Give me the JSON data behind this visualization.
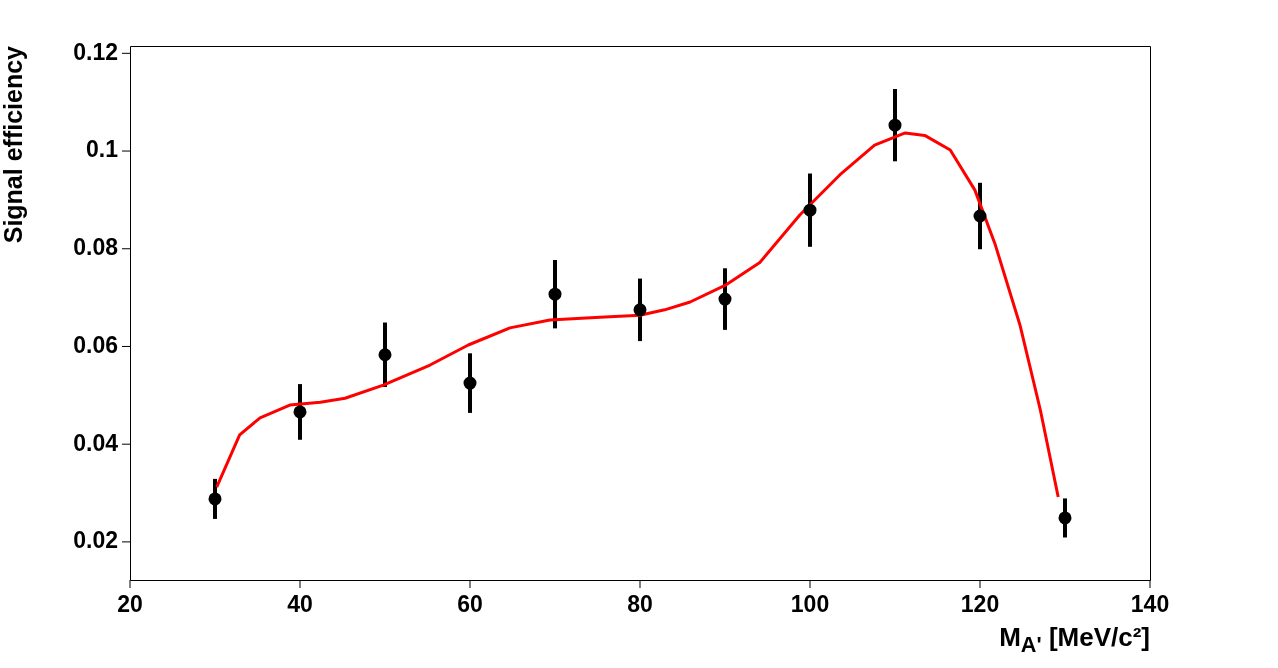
{
  "chart_data": {
    "type": "scatter",
    "ylabel": "Signal efficiency",
    "xlabel": "M$_{A'}$ [MeV/c²]",
    "xlim": [
      20,
      140
    ],
    "xticks": [
      20,
      40,
      60,
      80,
      100,
      120,
      140
    ],
    "ylim": [
      0.0122,
      0.1215
    ],
    "yticks": [
      0.02,
      0.04,
      0.06,
      0.08,
      0.1,
      0.12
    ],
    "marker": "circle",
    "series": [
      {
        "color": "#000000",
        "x": [
          30,
          40,
          50,
          60,
          70,
          80,
          90,
          100,
          110,
          120,
          130
        ],
        "values": [
          0.0288,
          0.0466,
          0.0583,
          0.0525,
          0.0707,
          0.0675,
          0.0697,
          0.0879,
          0.1053,
          0.0867,
          0.0249
        ],
        "errors": [
          0.0041,
          0.0057,
          0.0066,
          0.0061,
          0.007,
          0.0064,
          0.0063,
          0.0075,
          0.0074,
          0.0068,
          0.004
        ]
      },
      {
        "type": "line",
        "color": "#ff0000",
        "marker": "none",
        "line_style": "solid",
        "x": [
          30.2,
          32.9,
          35.3,
          38.8,
          42.4,
          45.3,
          49.8,
          55.3,
          59.8,
          64.7,
          69.4,
          75.3,
          80,
          82.9,
          85.9,
          90,
          94.1,
          98.8,
          103.5,
          107.6,
          111.2,
          113.5,
          116.5,
          119.4,
          121.8,
          124.7,
          127.1,
          129.2
        ],
        "values": [
          0.0312,
          0.0419,
          0.0454,
          0.048,
          0.0486,
          0.0494,
          0.0521,
          0.0562,
          0.0603,
          0.0638,
          0.0654,
          0.066,
          0.0664,
          0.0675,
          0.0691,
          0.0725,
          0.0772,
          0.0869,
          0.0951,
          0.1012,
          0.1037,
          0.1032,
          0.1002,
          0.092,
          0.0808,
          0.0644,
          0.047,
          0.0292
        ]
      }
    ]
  }
}
